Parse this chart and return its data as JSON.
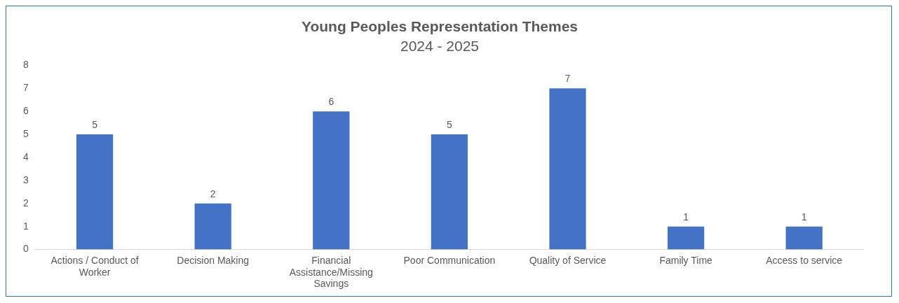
{
  "chart_data": {
    "type": "bar",
    "title": "Young Peoples Representation Themes",
    "subtitle": "2024 - 2025",
    "categories": [
      "Actions / Conduct of Worker",
      "Decision Making",
      "Financial Assistance/Missing Savings",
      "Poor Communication",
      "Quality of Service",
      "Family Time",
      "Access to service"
    ],
    "values": [
      5,
      2,
      6,
      5,
      7,
      1,
      1
    ],
    "color": "#4472c4",
    "ylim": [
      0,
      8
    ],
    "yticks": [
      0,
      1,
      2,
      3,
      4,
      5,
      6,
      7,
      8
    ],
    "grid": false,
    "legend": false,
    "data_labels": true
  }
}
